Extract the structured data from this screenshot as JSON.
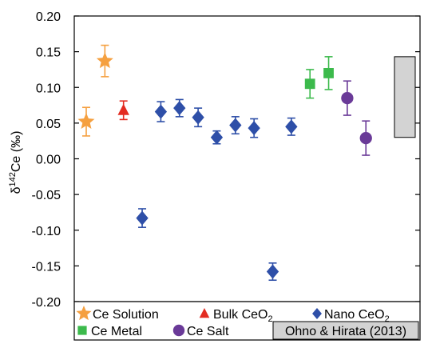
{
  "chart_data": {
    "type": "scatter",
    "ylabel_main": "δ",
    "ylabel_sup": "142",
    "ylabel_rest": "Ce (‰)",
    "ylim": [
      -0.2,
      0.2
    ],
    "yticks": [
      "0.20",
      "0.15",
      "0.10",
      "0.05",
      "0.00",
      "-0.05",
      "-0.10",
      "-0.15",
      "-0.20"
    ],
    "ytick_values": [
      0.2,
      0.15,
      0.1,
      0.05,
      0.0,
      -0.05,
      -0.1,
      -0.15,
      -0.2
    ],
    "grid": false,
    "legend_position": "bottom",
    "series": [
      {
        "name": "Ce Solution",
        "marker": "star",
        "color": "#f5a040",
        "points": [
          {
            "i": 1,
            "y": 0.052,
            "err": 0.02
          },
          {
            "i": 2,
            "y": 0.137,
            "err": 0.022
          }
        ]
      },
      {
        "name": "Bulk CeO",
        "sub": "2",
        "marker": "triangle",
        "color": "#e32c22",
        "points": [
          {
            "i": 3,
            "y": 0.068,
            "err": 0.013
          }
        ]
      },
      {
        "name": "Nano CeO",
        "sub": "2",
        "marker": "diamond",
        "color": "#2e4fa8",
        "points": [
          {
            "i": 4,
            "y": -0.083,
            "err": 0.013
          },
          {
            "i": 5,
            "y": 0.066,
            "err": 0.014
          },
          {
            "i": 6,
            "y": 0.071,
            "err": 0.012
          },
          {
            "i": 7,
            "y": 0.058,
            "err": 0.013
          },
          {
            "i": 8,
            "y": 0.03,
            "err": 0.009
          },
          {
            "i": 9,
            "y": 0.047,
            "err": 0.012
          },
          {
            "i": 10,
            "y": 0.043,
            "err": 0.013
          },
          {
            "i": 11,
            "y": -0.158,
            "err": 0.012
          },
          {
            "i": 12,
            "y": 0.045,
            "err": 0.012
          }
        ]
      },
      {
        "name": "Ce Metal",
        "marker": "square",
        "color": "#3cba4c",
        "points": [
          {
            "i": 13,
            "y": 0.105,
            "err": 0.02
          },
          {
            "i": 14,
            "y": 0.12,
            "err": 0.023
          }
        ]
      },
      {
        "name": "Ce Salt",
        "marker": "circle",
        "color": "#6a3a98",
        "points": [
          {
            "i": 15,
            "y": 0.085,
            "err": 0.024
          },
          {
            "i": 16,
            "y": 0.029,
            "err": 0.024
          }
        ]
      }
    ],
    "reference_range": {
      "name": "Ohno & Hirata (2013)",
      "y_top": 0.143,
      "y_bottom": 0.03,
      "fill": "#d3d3d3"
    }
  }
}
